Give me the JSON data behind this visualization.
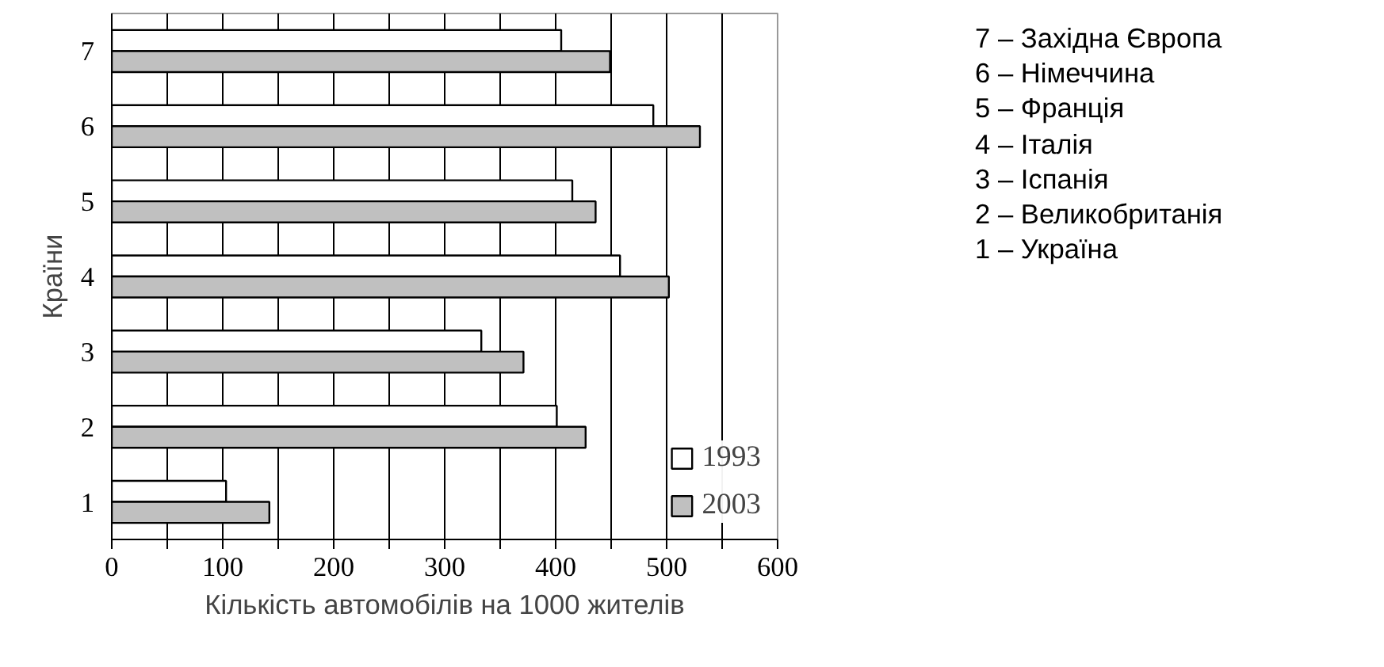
{
  "chart_data": {
    "type": "bar",
    "orientation": "horizontal",
    "xlabel": "Кількість автомобілів на 1000 жителів",
    "ylabel": "Країни",
    "categories": [
      "7",
      "6",
      "5",
      "4",
      "3",
      "2",
      "1"
    ],
    "series": [
      {
        "name": "1993",
        "color": "#ffffff",
        "values": [
          405,
          488,
          415,
          458,
          333,
          401,
          103
        ]
      },
      {
        "name": "2003",
        "color": "#c0c0c0",
        "values": [
          449,
          530,
          436,
          502,
          371,
          427,
          142
        ]
      }
    ],
    "xlim": [
      0,
      600
    ],
    "xticks": [
      0,
      {
        "value": 50,
        "label": null
      },
      100,
      {
        "value": 150,
        "label": null
      },
      200,
      {
        "value": 250,
        "label": null
      },
      300,
      {
        "value": 350,
        "label": null
      },
      400,
      {
        "value": 450,
        "label": null
      },
      500,
      {
        "value": 550,
        "label": null
      },
      600
    ],
    "grid": "x",
    "legend": "bottom right",
    "annotations": [
      "7 – Західна Європа",
      "6 – Німеччина",
      "5 – Франція",
      "4 – Італія",
      "3 – Іспанія",
      "2 – Великобританія",
      "1 – Україна"
    ]
  }
}
